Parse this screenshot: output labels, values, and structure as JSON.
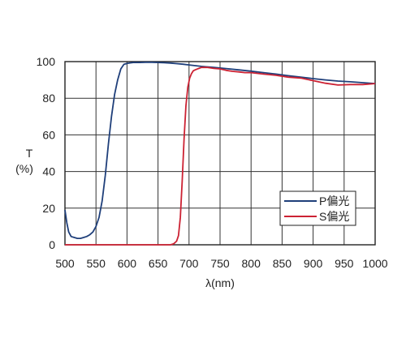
{
  "chart_data": {
    "type": "line",
    "ylabel": "T",
    "ylabel_unit": "(%)",
    "xlabel": "λ(nm)",
    "xlim": [
      500,
      1000
    ],
    "ylim": [
      0,
      100
    ],
    "xticks": [
      "500",
      "550",
      "600",
      "650",
      "700",
      "750",
      "800",
      "850",
      "900",
      "950",
      "1000"
    ],
    "yticks": [
      "0",
      "20",
      "40",
      "60",
      "80",
      "100"
    ],
    "grid": true,
    "legend_position": "lower-right",
    "series": [
      {
        "name": "P偏光",
        "color": "#1f3f7a",
        "x": [
          500,
          503,
          506,
          510,
          515,
          520,
          525,
          530,
          535,
          540,
          545,
          550,
          555,
          560,
          565,
          570,
          575,
          580,
          585,
          590,
          595,
          600,
          605,
          610,
          620,
          630,
          640,
          650,
          660,
          670,
          680,
          690,
          700,
          710,
          720,
          740,
          760,
          780,
          800,
          820,
          840,
          860,
          880,
          900,
          920,
          940,
          960,
          980,
          1000
        ],
        "y": [
          19,
          12,
          7,
          4.5,
          4,
          3.5,
          3.5,
          4,
          4.5,
          5.5,
          7,
          10,
          15,
          24,
          38,
          55,
          70,
          82,
          90,
          96,
          98.5,
          99,
          99.3,
          99.5,
          99.5,
          99.6,
          99.6,
          99.5,
          99.4,
          99.2,
          98.9,
          98.6,
          98.2,
          97.8,
          97.4,
          96.8,
          96.2,
          95.5,
          94.8,
          94,
          93.2,
          92.3,
          91.5,
          90.7,
          90,
          89.4,
          89,
          88.5,
          88
        ]
      },
      {
        "name": "S偏光",
        "color": "#cc2233",
        "x": [
          500,
          550,
          600,
          650,
          670,
          675,
          680,
          683,
          686,
          689,
          692,
          695,
          698,
          701,
          704,
          707,
          710,
          715,
          720,
          730,
          740,
          750,
          760,
          770,
          780,
          790,
          800,
          820,
          840,
          860,
          880,
          900,
          920,
          940,
          960,
          980,
          1000
        ],
        "y": [
          0,
          0,
          0,
          0,
          0,
          0.5,
          2,
          5,
          15,
          35,
          58,
          76,
          86,
          91,
          93.5,
          95,
          95.5,
          96.2,
          96.8,
          96.8,
          96.3,
          96,
          95.2,
          94.7,
          94.4,
          94,
          94,
          93.2,
          92.5,
          91.5,
          91,
          89.6,
          88.2,
          87.2,
          87.5,
          87.5,
          88
        ]
      }
    ]
  }
}
